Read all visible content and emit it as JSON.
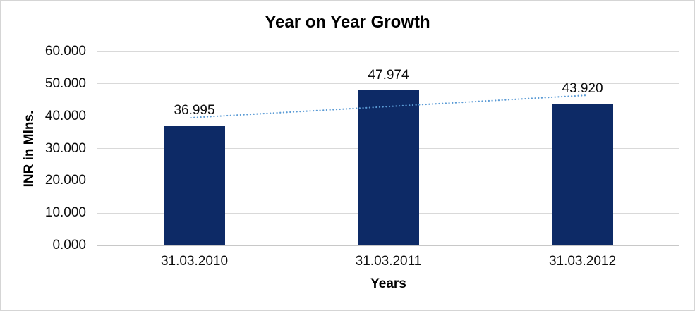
{
  "chart_data": {
    "type": "bar",
    "title": "Year on Year Growth",
    "xlabel": "Years",
    "ylabel": "INR in Mlns.",
    "categories": [
      "31.03.2010",
      "31.03.2011",
      "31.03.2012"
    ],
    "values": [
      36.995,
      47.974,
      43.92
    ],
    "data_labels": [
      "36.995",
      "47.974",
      "43.920"
    ],
    "ylim": [
      0,
      60
    ],
    "ytick_step": 10,
    "ytick_labels": [
      "60.000",
      "50.000",
      "40.000",
      "30.000",
      "20.000",
      "10.000",
      "0.000"
    ],
    "grid": true,
    "legend": "none",
    "bar_color": "#0d2a66",
    "gridline_color": "#d9d9d9",
    "trendline": {
      "style": "dotted",
      "color": "#5b9bd5",
      "start_value": 39.5,
      "end_value": 46.45
    }
  }
}
